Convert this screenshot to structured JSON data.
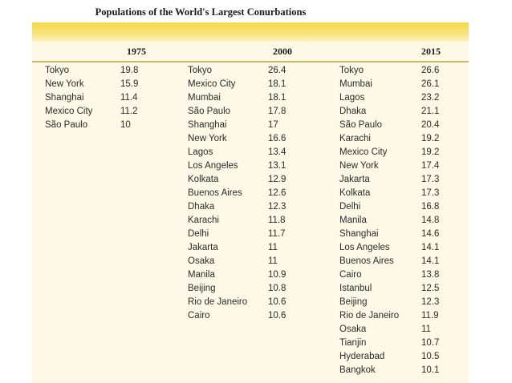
{
  "title": "Populations of the World's Largest Conurbations",
  "columns": [
    {
      "year": "1975",
      "rows": [
        {
          "city": "Tokyo",
          "value": "19.8"
        },
        {
          "city": "New York",
          "value": "15.9"
        },
        {
          "city": "Shanghai",
          "value": "11.4"
        },
        {
          "city": "Mexico City",
          "value": "11.2"
        },
        {
          "city": "São Paulo",
          "value": "10"
        }
      ]
    },
    {
      "year": "2000",
      "rows": [
        {
          "city": "Tokyo",
          "value": "26.4"
        },
        {
          "city": "Mexico City",
          "value": "18.1"
        },
        {
          "city": "Mumbai",
          "value": "18.1"
        },
        {
          "city": "São Paulo",
          "value": "17.8"
        },
        {
          "city": "Shanghai",
          "value": "17"
        },
        {
          "city": "New York",
          "value": "16.6"
        },
        {
          "city": "Lagos",
          "value": "13.4"
        },
        {
          "city": "Los Angeles",
          "value": "13.1"
        },
        {
          "city": "Kolkata",
          "value": "12.9"
        },
        {
          "city": "Buenos Aires",
          "value": "12.6"
        },
        {
          "city": "Dhaka",
          "value": "12.3"
        },
        {
          "city": "Karachi",
          "value": "11.8"
        },
        {
          "city": "Delhi",
          "value": "11.7"
        },
        {
          "city": "Jakarta",
          "value": "11"
        },
        {
          "city": "Osaka",
          "value": "11"
        },
        {
          "city": "Manila",
          "value": "10.9"
        },
        {
          "city": "Beijing",
          "value": "10.8"
        },
        {
          "city": "Rio de Janeiro",
          "value": "10.6"
        },
        {
          "city": "Cairo",
          "value": "10.6"
        }
      ]
    },
    {
      "year": "2015",
      "rows": [
        {
          "city": "Tokyo",
          "value": "26.6"
        },
        {
          "city": "Mumbai",
          "value": "26.1"
        },
        {
          "city": "Lagos",
          "value": "23.2"
        },
        {
          "city": "Dhaka",
          "value": "21.1"
        },
        {
          "city": "São Paulo",
          "value": "20.4"
        },
        {
          "city": "Karachi",
          "value": "19.2"
        },
        {
          "city": "Mexico City",
          "value": "19.2"
        },
        {
          "city": "New York",
          "value": "17.4"
        },
        {
          "city": "Jakarta",
          "value": "17.3"
        },
        {
          "city": "Kolkata",
          "value": "17.3"
        },
        {
          "city": "Delhi",
          "value": "16.8"
        },
        {
          "city": "Manila",
          "value": "14.8"
        },
        {
          "city": "Shanghai",
          "value": "14.6"
        },
        {
          "city": "Los Angeles",
          "value": "14.1"
        },
        {
          "city": "Buenos Aires",
          "value": "14.1"
        },
        {
          "city": "Cairo",
          "value": "13.8"
        },
        {
          "city": "Istanbul",
          "value": "12.5"
        },
        {
          "city": "Beijing",
          "value": "12.3"
        },
        {
          "city": "Rio de Janeiro",
          "value": "11.9"
        },
        {
          "city": "Osaka",
          "value": "11"
        },
        {
          "city": "Tianjin",
          "value": "10.7"
        },
        {
          "city": "Hyderabad",
          "value": "10.5"
        },
        {
          "city": "Bangkok",
          "value": "10.1"
        }
      ]
    }
  ]
}
